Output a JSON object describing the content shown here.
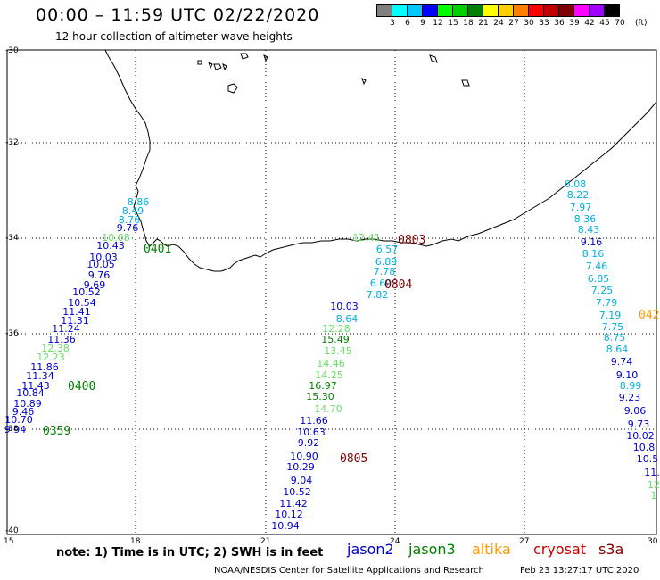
{
  "header": {
    "title": "00:00 – 11:59 UTC 02/22/2020",
    "subtitle": "12 hour collection of altimeter wave heights"
  },
  "legend": {
    "colors": [
      "#808080",
      "#00ffff",
      "#00c8ff",
      "#0000ff",
      "#00ff00",
      "#00d000",
      "#008000",
      "#ffff00",
      "#ffd000",
      "#ff8000",
      "#ff0000",
      "#c00000",
      "#800000",
      "#ff00ff",
      "#a000ff",
      "#000000"
    ],
    "labels": [
      "3",
      "6",
      "9",
      "12",
      "15",
      "18",
      "21",
      "24",
      "27",
      "30",
      "33",
      "36",
      "39",
      "42",
      "45",
      "70"
    ],
    "unit": "(ft)"
  },
  "map": {
    "lat_labels": [
      "-30",
      "-32",
      "-34",
      "-36",
      "-38",
      "-40"
    ],
    "lon_labels": [
      "15",
      "18",
      "21",
      "24",
      "27",
      "30"
    ]
  },
  "satellite_colors": {
    "jason2": "#0000cc",
    "jason3": "#008000",
    "altika": "#ff9900",
    "cryosat": "#cc0000",
    "s3a": "#800000"
  },
  "tracks": [
    {
      "color": "#00b0e0",
      "values": [
        "8.86",
        "8.49",
        "8.76"
      ]
    },
    {
      "color": "#0000cc",
      "values": [
        "9.76"
      ]
    },
    {
      "color": "#66dd66",
      "values": [
        "10.08"
      ]
    },
    {
      "color": "#0000cc",
      "values": [
        "10.43",
        "10.03",
        "10.05",
        "9.76",
        "9.69",
        "10.52",
        "10.54",
        "11.41",
        "11.31",
        "11.24",
        "11.36"
      ]
    },
    {
      "color": "#66dd66",
      "values": [
        "12.38",
        "12.23"
      ]
    },
    {
      "color": "#0000cc",
      "values": [
        "11.86",
        "11.34",
        "11.43",
        "10.84",
        "10.89",
        "9.46",
        "10.70",
        "9.94"
      ]
    },
    {
      "color": "#66dd66",
      "values": [
        "12.41"
      ]
    },
    {
      "color": "#00b0e0",
      "values": [
        "6.57",
        "6.89",
        "7.78",
        "6.60",
        "7.82"
      ]
    },
    {
      "color": "#0000cc",
      "values": [
        "10.03"
      ]
    },
    {
      "color": "#00b0e0",
      "values": [
        "8.64"
      ]
    },
    {
      "color": "#66dd66",
      "values": [
        "12.28"
      ]
    },
    {
      "color": "#008000",
      "values": [
        "15.49"
      ]
    },
    {
      "color": "#66dd66",
      "values": [
        "13.45",
        "14.46",
        "14.25"
      ]
    },
    {
      "color": "#008000",
      "values": [
        "16.97",
        "15.30"
      ]
    },
    {
      "color": "#66dd66",
      "values": [
        "14.70"
      ]
    },
    {
      "color": "#0000cc",
      "values": [
        "11.66",
        "10.63",
        "9.92",
        "10.90",
        "10.29",
        "9.04",
        "10.52",
        "11.42",
        "10.12",
        "10.94"
      ]
    },
    {
      "color": "#00b0e0",
      "values": [
        "6.08",
        "8.22",
        "7.97",
        "8.36",
        "8.43"
      ]
    },
    {
      "color": "#0000cc",
      "values": [
        "9.16"
      ]
    },
    {
      "color": "#00b0e0",
      "values": [
        "8.16",
        "7.46",
        "6.85",
        "7.25",
        "7.79",
        "7.19",
        "7.75",
        "8.75",
        "8.64"
      ]
    },
    {
      "color": "#0000cc",
      "values": [
        "9.74",
        "9.10"
      ]
    },
    {
      "color": "#00b0e0",
      "values": [
        "8.99"
      ]
    },
    {
      "color": "#0000cc",
      "values": [
        "9.23",
        "9.06",
        "9.73",
        "10.02",
        "10.8",
        "10.5",
        "11."
      ]
    },
    {
      "color": "#66dd66",
      "values": [
        "12",
        "1"
      ]
    }
  ],
  "time_tags": [
    {
      "text": "0401",
      "color": "#008000"
    },
    {
      "text": "0400",
      "color": "#008000"
    },
    {
      "text": "0359",
      "color": "#008000"
    },
    {
      "text": "0803",
      "color": "#800000"
    },
    {
      "text": "0804",
      "color": "#800000"
    },
    {
      "text": "0805",
      "color": "#800000"
    },
    {
      "text": "042",
      "color": "#ff9900"
    }
  ],
  "footer": {
    "note": "note:  1) Time is in UTC;  2) SWH is in feet",
    "satellites": [
      "jason2",
      "jason3",
      "altika",
      "cryosat",
      "s3a"
    ],
    "credit": "NOAA/NESDIS Center for Satellite Applications and Research",
    "generated": "Feb 23 13:27:17 UTC 2020"
  }
}
